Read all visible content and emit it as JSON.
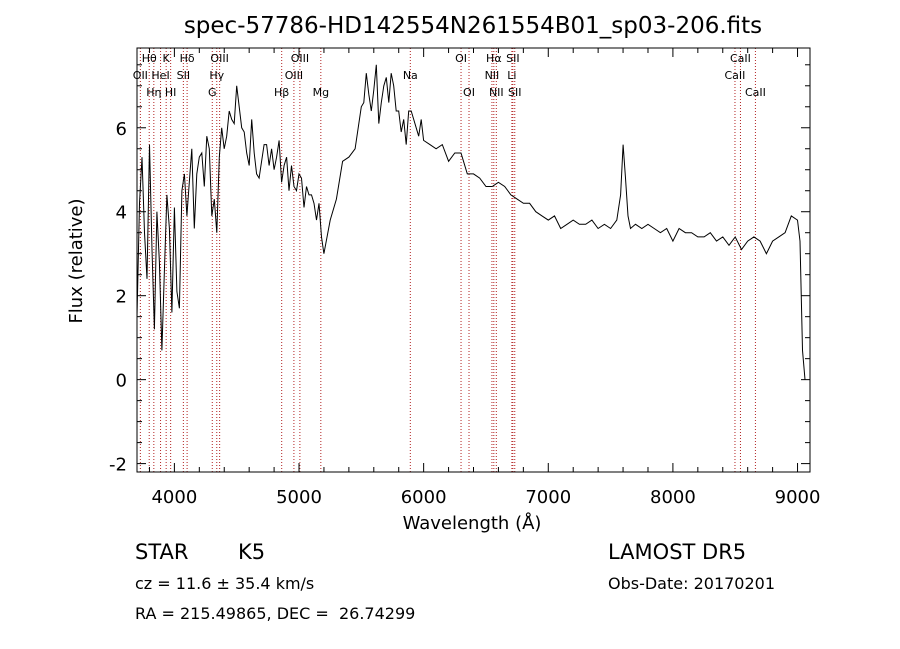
{
  "chart_data": {
    "type": "line",
    "title": "spec-57786-HD142554N261554B01_sp03-206.fits",
    "xlabel": "Wavelength (Å)",
    "ylabel": "Flux (relative)",
    "xlim": [
      3700,
      9100
    ],
    "ylim": [
      -2.2,
      7.9
    ],
    "xticks": [
      4000,
      5000,
      6000,
      7000,
      8000,
      9000
    ],
    "yticks": [
      -2,
      0,
      2,
      4,
      6
    ],
    "grid": false,
    "legend": "none",
    "series": [
      {
        "x": [
          3700,
          3720,
          3740,
          3760,
          3780,
          3800,
          3820,
          3840,
          3860,
          3880,
          3900,
          3920,
          3940,
          3960,
          3980,
          4000,
          4020,
          4040,
          4060,
          4080,
          4100,
          4120,
          4140,
          4160,
          4180,
          4200,
          4220,
          4240,
          4260,
          4280,
          4300,
          4320,
          4340,
          4360,
          4380,
          4400,
          4420,
          4440,
          4460,
          4480,
          4500,
          4520,
          4540,
          4560,
          4580,
          4600,
          4620,
          4640,
          4660,
          4680,
          4700,
          4720,
          4740,
          4760,
          4780,
          4800,
          4820,
          4840,
          4860,
          4880,
          4900,
          4920,
          4940,
          4960,
          4980,
          5000,
          5020,
          5040,
          5060,
          5080,
          5100,
          5120,
          5140,
          5160,
          5180,
          5200,
          5250,
          5300,
          5350,
          5400,
          5450,
          5500,
          5520,
          5540,
          5560,
          5580,
          5600,
          5620,
          5640,
          5660,
          5680,
          5700,
          5720,
          5740,
          5760,
          5780,
          5800,
          5820,
          5840,
          5860,
          5880,
          5900,
          5920,
          5940,
          5960,
          5980,
          6000,
          6050,
          6100,
          6150,
          6200,
          6250,
          6300,
          6350,
          6400,
          6450,
          6500,
          6550,
          6600,
          6650,
          6700,
          6750,
          6800,
          6850,
          6900,
          6950,
          7000,
          7050,
          7100,
          7150,
          7200,
          7250,
          7300,
          7350,
          7400,
          7450,
          7500,
          7550,
          7580,
          7600,
          7620,
          7640,
          7660,
          7700,
          7750,
          7800,
          7850,
          7900,
          7950,
          8000,
          8050,
          8100,
          8150,
          8200,
          8250,
          8300,
          8350,
          8400,
          8450,
          8500,
          8550,
          8600,
          8650,
          8700,
          8750,
          8800,
          8850,
          8900,
          8950,
          9000,
          9020,
          9040,
          9060
        ],
        "y": [
          1.5,
          4.2,
          5.3,
          3.5,
          2.4,
          5.6,
          3.1,
          1.2,
          4.0,
          2.8,
          0.7,
          2.6,
          4.4,
          3.6,
          1.6,
          4.1,
          2.1,
          1.7,
          4.5,
          4.9,
          3.9,
          4.7,
          5.5,
          3.6,
          4.9,
          5.3,
          5.4,
          4.6,
          5.8,
          5.5,
          3.9,
          4.3,
          3.5,
          5.3,
          6.0,
          5.5,
          5.8,
          6.4,
          6.2,
          6.1,
          7.0,
          6.5,
          6.0,
          5.9,
          5.4,
          5.1,
          6.2,
          5.4,
          4.9,
          4.8,
          5.2,
          5.6,
          5.6,
          5.1,
          5.5,
          5.0,
          5.3,
          5.7,
          4.7,
          5.1,
          5.3,
          4.5,
          5.1,
          4.6,
          4.5,
          4.9,
          4.8,
          4.1,
          4.6,
          4.4,
          4.4,
          4.2,
          3.8,
          4.2,
          3.4,
          3.0,
          3.8,
          4.3,
          5.2,
          5.3,
          5.5,
          6.5,
          6.6,
          7.3,
          6.8,
          6.4,
          6.9,
          7.5,
          6.1,
          6.6,
          7.0,
          7.2,
          6.6,
          7.3,
          7.0,
          6.4,
          6.4,
          5.9,
          6.2,
          5.6,
          6.4,
          6.4,
          6.2,
          6.0,
          5.8,
          6.2,
          5.7,
          5.6,
          5.5,
          5.6,
          5.2,
          5.4,
          5.4,
          4.9,
          4.9,
          4.8,
          4.6,
          4.6,
          4.7,
          4.6,
          4.4,
          4.3,
          4.2,
          4.2,
          4.0,
          3.9,
          3.8,
          3.9,
          3.6,
          3.7,
          3.8,
          3.7,
          3.7,
          3.8,
          3.6,
          3.7,
          3.6,
          3.8,
          4.4,
          5.6,
          4.8,
          3.9,
          3.6,
          3.7,
          3.6,
          3.7,
          3.6,
          3.5,
          3.6,
          3.3,
          3.6,
          3.5,
          3.5,
          3.4,
          3.4,
          3.5,
          3.3,
          3.4,
          3.2,
          3.4,
          3.1,
          3.3,
          3.4,
          3.3,
          3.0,
          3.3,
          3.4,
          3.5,
          3.9,
          3.8,
          3.3,
          0.7,
          0.0
        ]
      }
    ],
    "annotations": {
      "line_markers": [
        {
          "x": 3727,
          "tier": 1,
          "label": "OII"
        },
        {
          "x": 3798,
          "tier": 0,
          "label": "Hθ"
        },
        {
          "x": 3835,
          "tier": 2,
          "label": "Hη"
        },
        {
          "x": 3889,
          "tier": 1,
          "label": "HeI"
        },
        {
          "x": 3934,
          "tier": 0,
          "label": "K"
        },
        {
          "x": 3970,
          "tier": 2,
          "label": "HI"
        },
        {
          "x": 4072,
          "tier": 1,
          "label": "SII"
        },
        {
          "x": 4102,
          "tier": 0,
          "label": "Hδ"
        },
        {
          "x": 4304,
          "tier": 2,
          "label": "G"
        },
        {
          "x": 4340,
          "tier": 1,
          "label": "Hγ"
        },
        {
          "x": 4363,
          "tier": 0,
          "label": "OIII"
        },
        {
          "x": 4861,
          "tier": 2,
          "label": "Hβ"
        },
        {
          "x": 4959,
          "tier": 1,
          "label": "OIII"
        },
        {
          "x": 5007,
          "tier": 0,
          "label": "OIII"
        },
        {
          "x": 5175,
          "tier": 2,
          "label": "Mg"
        },
        {
          "x": 5893,
          "tier": 1,
          "label": "Na"
        },
        {
          "x": 6300,
          "tier": 0,
          "label": "OI"
        },
        {
          "x": 6364,
          "tier": 2,
          "label": "OI"
        },
        {
          "x": 6548,
          "tier": 1,
          "label": "NII"
        },
        {
          "x": 6563,
          "tier": 0,
          "label": "Hα"
        },
        {
          "x": 6583,
          "tier": 2,
          "label": "NII"
        },
        {
          "x": 6708,
          "tier": 1,
          "label": "Li"
        },
        {
          "x": 6716,
          "tier": 0,
          "label": "SII"
        },
        {
          "x": 6731,
          "tier": 2,
          "label": "SII"
        },
        {
          "x": 8498,
          "tier": 1,
          "label": "CaII"
        },
        {
          "x": 8542,
          "tier": 0,
          "label": "CaII"
        },
        {
          "x": 8662,
          "tier": 2,
          "label": "CaII"
        }
      ],
      "marker_color": "#b22222"
    }
  },
  "info": {
    "class": "STAR",
    "subclass": "K5",
    "survey": "LAMOST DR5",
    "cz": "cz = 11.6 ± 35.4 km/s",
    "obs_date": "Obs-Date: 20170201",
    "coords": "RA = 215.49865, DEC =  26.74299"
  }
}
